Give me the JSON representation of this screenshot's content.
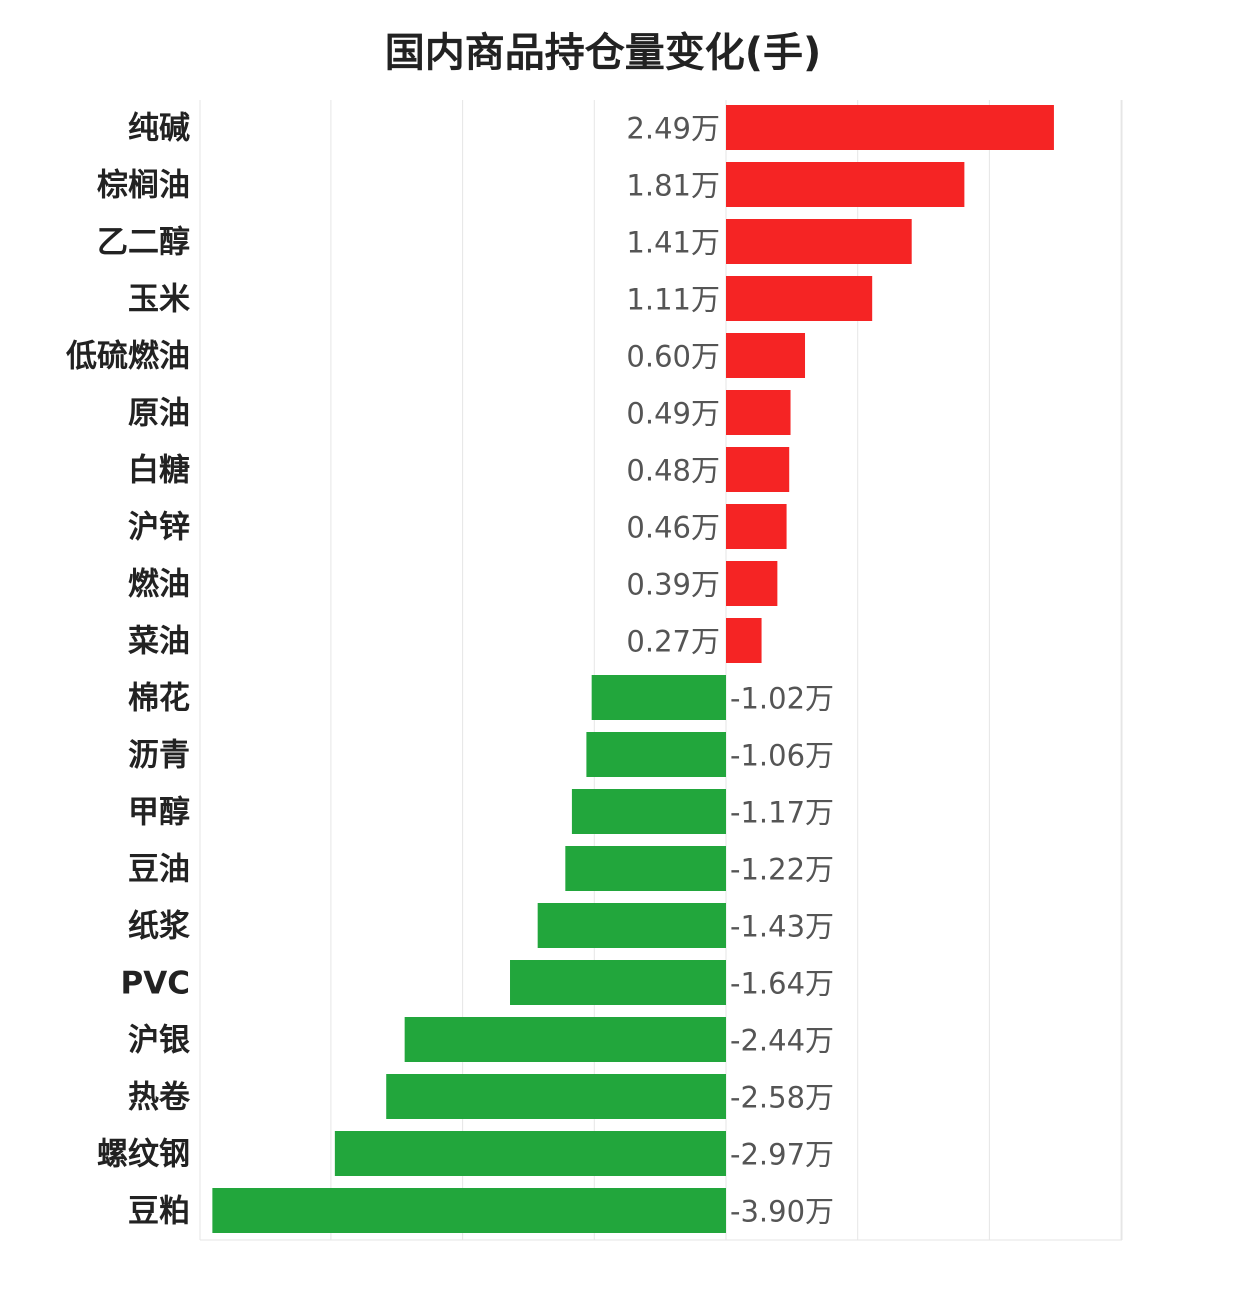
{
  "chart_data": {
    "type": "bar",
    "orientation": "horizontal",
    "title": "国内商品持仓量变化(手)",
    "unit_suffix": "万",
    "xlim": [
      -4.0,
      3.0
    ],
    "grid": true,
    "colors": {
      "positive": "#f52424",
      "negative": "#22a63c"
    },
    "categories": [
      "纯碱",
      "棕榈油",
      "乙二醇",
      "玉米",
      "低硫燃油",
      "原油",
      "白糖",
      "沪锌",
      "燃油",
      "菜油",
      "棉花",
      "沥青",
      "甲醇",
      "豆油",
      "纸浆",
      "PVC",
      "沪银",
      "热卷",
      "螺纹钢",
      "豆粕"
    ],
    "values": [
      2.49,
      1.81,
      1.41,
      1.11,
      0.6,
      0.49,
      0.48,
      0.46,
      0.39,
      0.27,
      -1.02,
      -1.06,
      -1.17,
      -1.22,
      -1.43,
      -1.64,
      -2.44,
      -2.58,
      -2.97,
      -3.9
    ],
    "value_labels": [
      "2.49万",
      "1.81万",
      "1.41万",
      "1.11万",
      "0.60万",
      "0.49万",
      "0.48万",
      "0.46万",
      "0.39万",
      "0.27万",
      "-1.02万",
      "-1.06万",
      "-1.17万",
      "-1.22万",
      "-1.43万",
      "-1.64万",
      "-2.44万",
      "-2.58万",
      "-2.97万",
      "-3.90万"
    ]
  }
}
